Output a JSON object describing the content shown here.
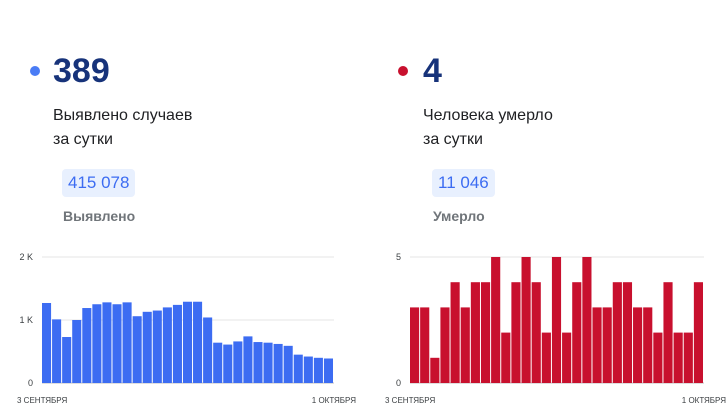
{
  "cases": {
    "value": "389",
    "desc_line1": "Выявлено случаев",
    "desc_line2": "за сутки",
    "total": "415 078",
    "total_label": "Выявлено",
    "color": "#3c6cf2",
    "dot_color": "#4a7cf5",
    "value_color": "#17337a",
    "total_text_color": "#3c6cf2"
  },
  "deaths": {
    "value": "4",
    "desc_line1": "Человека умерло",
    "desc_line2": "за сутки",
    "total": "11 046",
    "total_label": "Умерло",
    "color": "#c8102e",
    "dot_color": "#c8102e",
    "value_color": "#17337a",
    "total_text_color": "#3c6cf2"
  },
  "chart_data": [
    {
      "type": "bar",
      "series": [
        {
          "values": [
            1270,
            1010,
            730,
            1000,
            1190,
            1250,
            1280,
            1250,
            1280,
            1060,
            1130,
            1150,
            1200,
            1240,
            1290,
            1290,
            1040,
            640,
            610,
            660,
            740,
            650,
            640,
            620,
            590,
            450,
            420,
            400,
            389
          ]
        }
      ],
      "ylim": [
        0,
        2000
      ],
      "y_ticks": [
        "0",
        "1 K",
        "2 K"
      ],
      "y_tick_values": [
        0,
        1000,
        2000
      ],
      "x_ticks": [
        "3 СЕНТЯБРЯ",
        "1 ОКТЯБРЯ"
      ],
      "grid": true
    },
    {
      "type": "bar",
      "series": [
        {
          "values": [
            3,
            3,
            1,
            3,
            4,
            3,
            4,
            4,
            5,
            2,
            4,
            5,
            4,
            2,
            5,
            2,
            4,
            5,
            3,
            3,
            4,
            4,
            3,
            3,
            2,
            4,
            2,
            2,
            4
          ]
        }
      ],
      "ylim": [
        0,
        5
      ],
      "y_ticks": [
        "0",
        "5"
      ],
      "y_tick_values": [
        0,
        5
      ],
      "x_ticks": [
        "3 СЕНТЯБРЯ",
        "1 ОКТЯБРЯ"
      ],
      "grid": true
    }
  ]
}
